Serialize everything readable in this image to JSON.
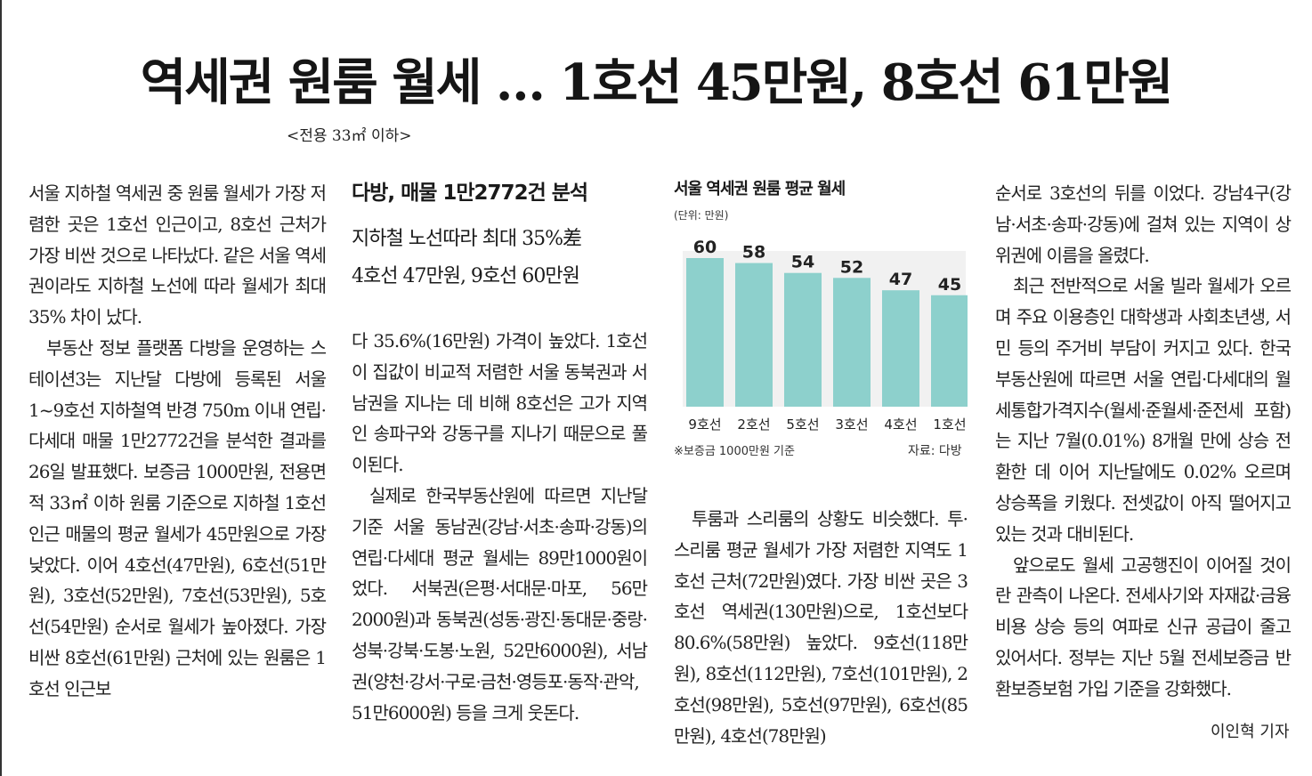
{
  "headline": "역세권 원룸 월세 … 1호선 45만원, 8호선 61만원",
  "subheadline": "<전용 33㎡ 이하>",
  "kicker": {
    "title": "다방, 매물 1만2772건 분석",
    "line1": "지하철 노선따라 최대 35%差",
    "line2": "4호선 47만원, 9호선 60만원"
  },
  "columns": {
    "col1": {
      "p1": "서울 지하철 역세권 중 원룸 월세가 가장 저렴한 곳은 1호선 인근이고, 8호선 근처가 가장 비싼 것으로 나타났다. 같은 서울 역세권이라도 지하철 노선에 따라 월세가 최대 35% 차이 났다.",
      "p2": "부동산 정보 플랫폼 다방을 운영하는 스테이션3는 지난달 다방에 등록된 서울 1~9호선 지하철역 반경 750m 이내 연립·다세대 매물 1만2772건을 분석한 결과를 26일 발표했다. 보증금 1000만원, 전용면적 33㎡ 이하 원룸 기준으로 지하철 1호선 인근 매물의 평균 월세가 45만원으로 가장 낮았다. 이어 4호선(47만원), 6호선(51만원), 3호선(52만원), 7호선(53만원), 5호선(54만원) 순서로 월세가 높아졌다. 가장 비싼 8호선(61만원) 근처에 있는 원룸은 1호선 인근보"
    },
    "col2": {
      "p1": "다 35.6%(16만원) 가격이 높았다. 1호선이 집값이 비교적 저렴한 서울 동북권과 서남권을 지나는 데 비해 8호선은 고가 지역인 송파구와 강동구를 지나기 때문으로 풀이된다.",
      "p2": "실제로 한국부동산원에 따르면 지난달 기준 서울 동남권(강남·서초·송파·강동)의 연립·다세대 평균 월세는 89만1000원이었다. 서북권(은평·서대문·마포, 56만2000원)과 동북권(성동·광진·동대문·중랑·성북·강북·도봉·노원, 52만6000원), 서남권(양천·강서·구로·금천·영등포·동작·관악, 51만6000원) 등을 크게 웃돈다."
    },
    "col3": {
      "p1": "투룸과 스리룸의 상황도 비슷했다. 투·스리룸 평균 월세가 가장 저렴한 지역도 1호선 근처(72만원)였다. 가장 비싼 곳은 3호선 역세권(130만원)으로, 1호선보다 80.6%(58만원) 높았다. 9호선(118만원), 8호선(112만원), 7호선(101만원), 2호선(98만원), 5호선(97만원), 6호선(85만원), 4호선(78만원)"
    },
    "col4": {
      "p1": "순서로 3호선의 뒤를 이었다. 강남4구(강남·서초·송파·강동)에 걸쳐 있는 지역이 상위권에 이름을 올렸다.",
      "p2": "최근 전반적으로 서울 빌라 월세가 오르며 주요 이용층인 대학생과 사회초년생, 서민 등의 주거비 부담이 커지고 있다. 한국부동산원에 따르면 서울 연립·다세대의 월세통합가격지수(월세·준월세·준전세 포함)는 지난 7월(0.01%) 8개월 만에 상승 전환한 데 이어 지난달에도 0.02% 오르며 상승폭을 키웠다. 전셋값이 아직 떨어지고 있는 것과 대비된다.",
      "p3": "앞으로도 월세 고공행진이 이어질 것이란 관측이 나온다. 전세사기와 자재값·금융비용 상승 등의 여파로 신규 공급이 줄고 있어서다. 정부는 지난 5월 전세보증금 반환보증보험 가입 기준을 강화했다."
    }
  },
  "byline": "이인혁 기자",
  "chart_data": {
    "type": "bar",
    "title": "서울 역세권 원룸 평균 월세",
    "unit_label": "(단위: 만원)",
    "categories": [
      "9호선",
      "2호선",
      "5호선",
      "3호선",
      "4호선",
      "1호선"
    ],
    "values": [
      60,
      58,
      54,
      52,
      47,
      45
    ],
    "note": "※보증금 1000만원 기준",
    "source": "자료: 다방",
    "bar_color": "#8dd0cc",
    "ylim": [
      0,
      60
    ]
  }
}
